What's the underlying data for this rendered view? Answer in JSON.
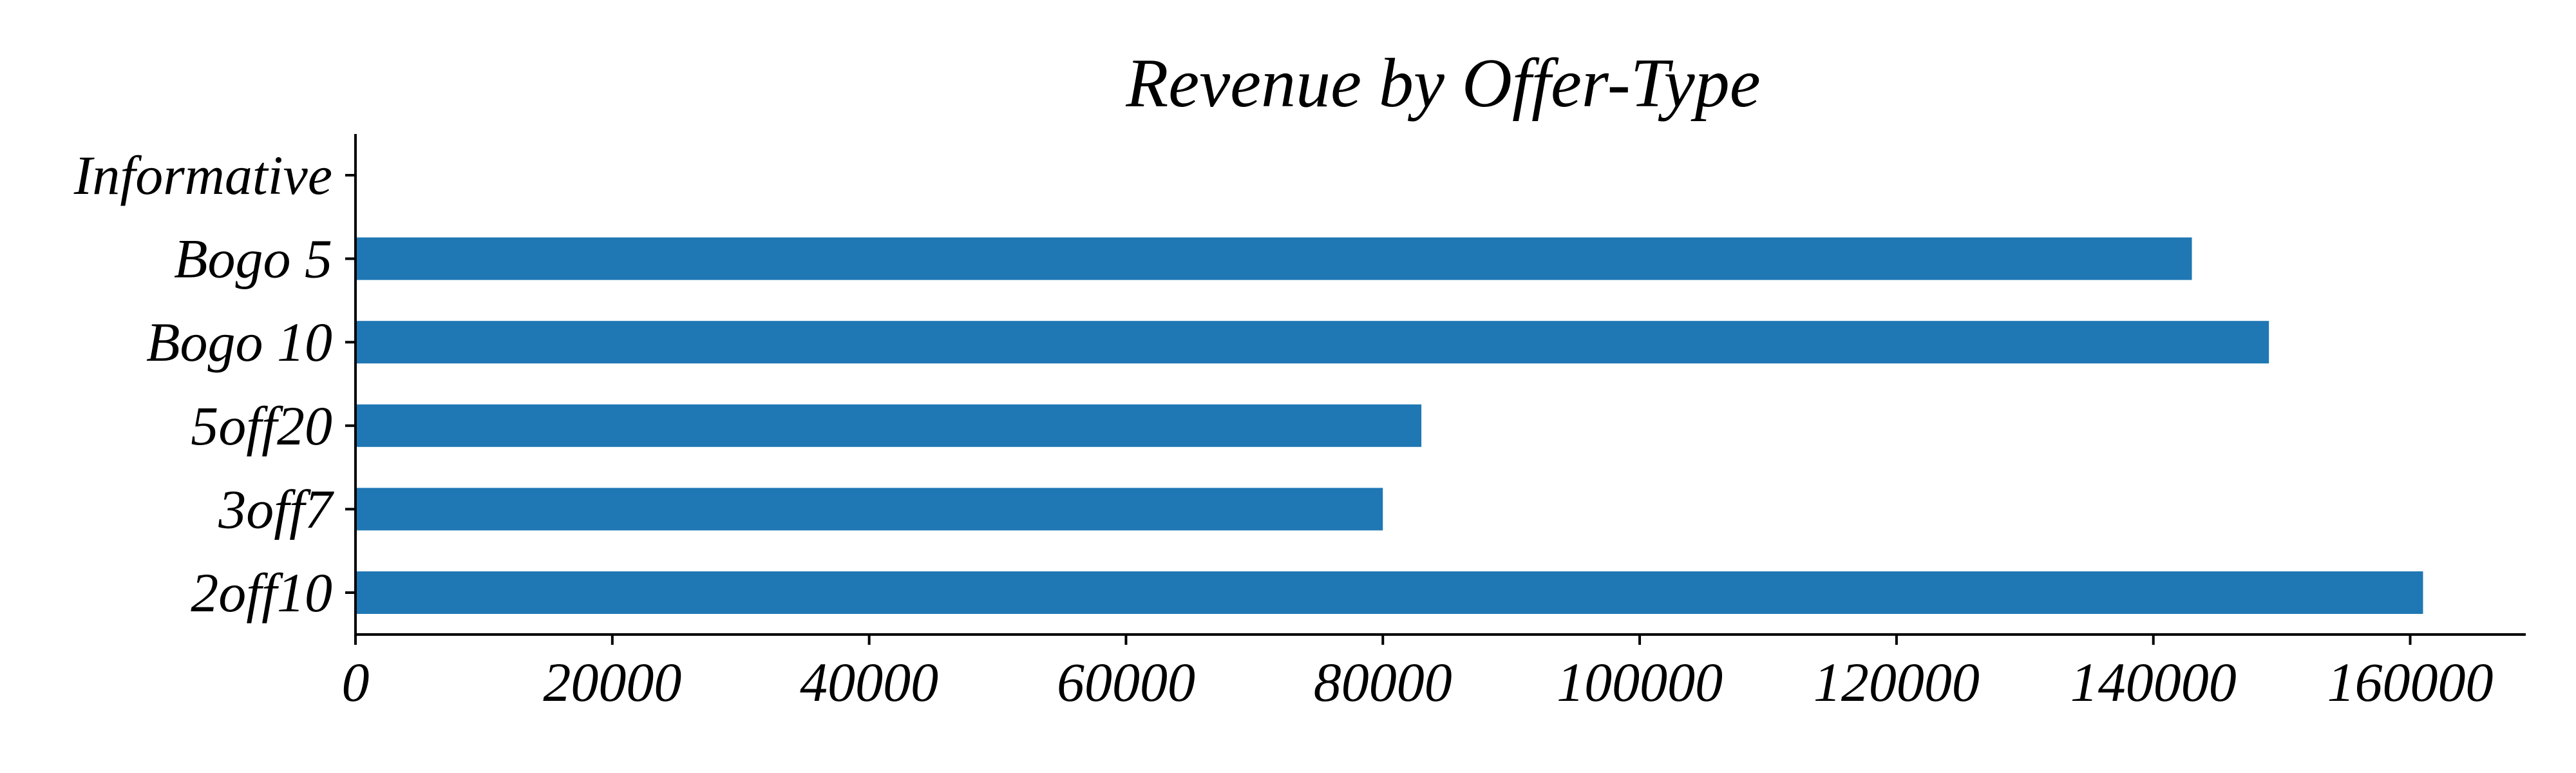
{
  "chart_data": {
    "type": "bar",
    "orientation": "horizontal",
    "title": "Revenue by Offer-Type",
    "xlabel": "",
    "ylabel": "",
    "categories": [
      "Informative",
      "Bogo 5",
      "Bogo 10",
      "5off20",
      "3off7",
      "2off10"
    ],
    "values": [
      0,
      143000,
      149000,
      83000,
      80000,
      161000
    ],
    "xlim": [
      0,
      169000
    ],
    "xticks": [
      0,
      20000,
      40000,
      60000,
      80000,
      100000,
      120000,
      140000,
      160000
    ],
    "xtick_labels": [
      "0",
      "20000",
      "40000",
      "60000",
      "80000",
      "100000",
      "120000",
      "140000",
      "160000"
    ],
    "bar_color": "#1f77b4",
    "grid": false,
    "legend": "none"
  }
}
